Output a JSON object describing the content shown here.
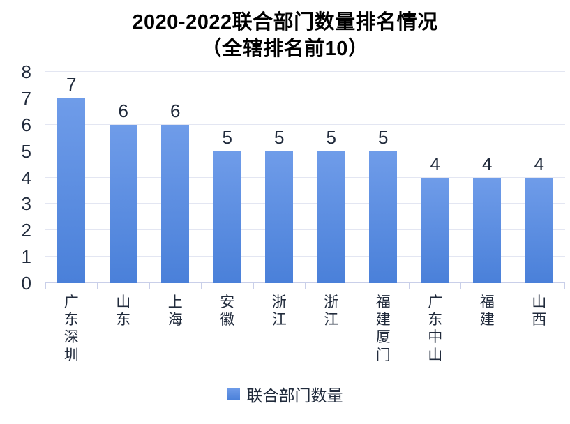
{
  "title": {
    "line1": "2020-2022联合部门数量排名情况",
    "line2": "（全辖排名前10）"
  },
  "legend": {
    "label": "联合部门数量",
    "marker_color": "#4e87de"
  },
  "colors": {
    "bar_top": "#6f9ce9",
    "bar_bottom": "#4a80d9",
    "grid": "#e3e6f2",
    "axis": "#c9cfe9",
    "text": "#212b3c",
    "title_text": "#000000"
  },
  "chart_data": {
    "type": "bar",
    "title": "2020-2022联合部门数量排名情况（全辖排名前10）",
    "categories": [
      "广东深圳",
      "山东",
      "上海",
      "安徽",
      "浙江",
      "浙江",
      "福建厦门",
      "广东中山",
      "福建",
      "山西"
    ],
    "series": [
      {
        "name": "联合部门数量",
        "values": [
          7,
          6,
          6,
          5,
          5,
          5,
          5,
          4,
          4,
          4
        ]
      }
    ],
    "xlabel": "",
    "ylabel": "",
    "ylim": [
      0,
      8
    ],
    "yticks": [
      0,
      1,
      2,
      3,
      4,
      5,
      6,
      7,
      8
    ],
    "grid": true,
    "data_labels": true,
    "legend_position": "bottom"
  }
}
